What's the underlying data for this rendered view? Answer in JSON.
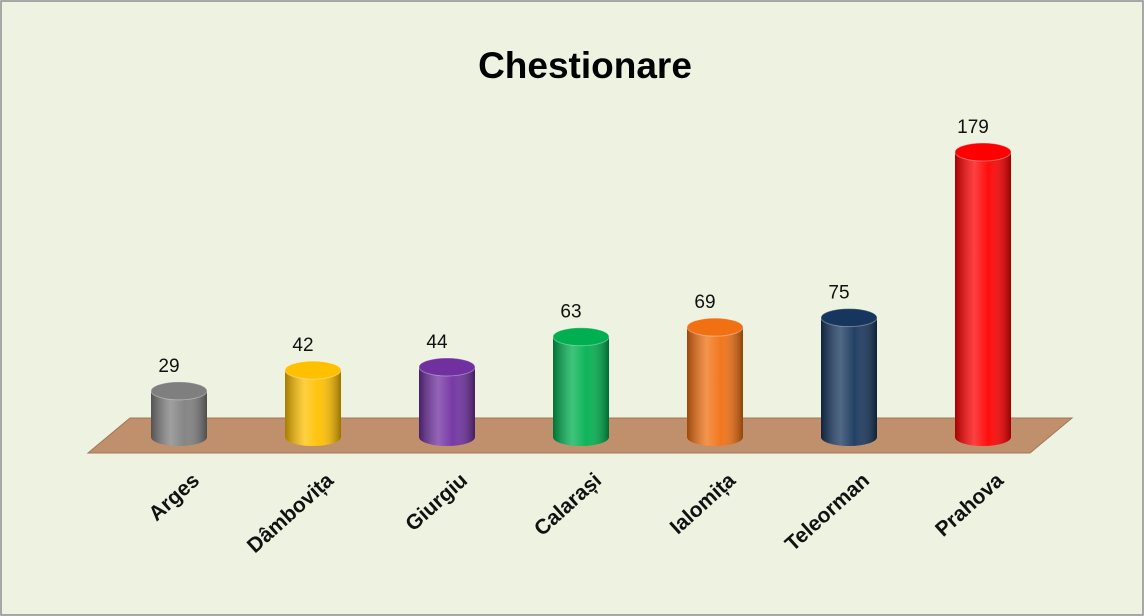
{
  "chart_data": {
    "type": "bar3d",
    "title": "Chestionare",
    "categories": [
      "Arges",
      "Dâmbovița",
      "Giurgiu",
      "Calarași",
      "Ialomița",
      "Teleorman",
      "Prahova"
    ],
    "values": [
      29,
      42,
      44,
      63,
      69,
      75,
      179
    ],
    "colors": [
      "#7f7f7f",
      "#ffc000",
      "#7030a0",
      "#00b050",
      "#f07012",
      "#17365d",
      "#ff0000"
    ],
    "floor_color": "#c0906c"
  }
}
